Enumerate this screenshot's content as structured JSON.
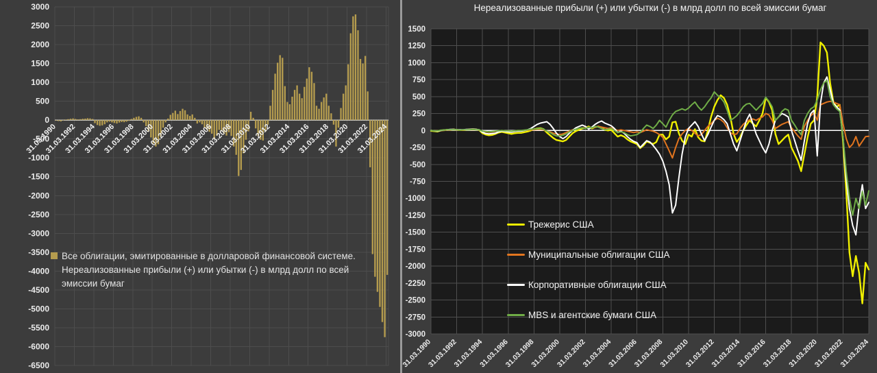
{
  "colors": {
    "panel_bg": "#3c3c3c",
    "left_grid": "#4d4d4d",
    "left_zero_axis": "#c9c9c9",
    "bar_fill": "#b59c4e",
    "right_plot_bg": "#1b1b1b",
    "right_grid": "#4f4f4f",
    "right_zero_line": "#ffffff",
    "divider": "#9a9a9a",
    "text": "#ececec"
  },
  "chart_data": [
    {
      "panel": "left",
      "type": "bar",
      "legend_label": "Все облигации, эмитированные в долларовой финансовой системе. Нереализованные прибыли (+) или убытки (-) в млрд долл по всей эмиссии бумаг",
      "bar_color": "#b59c4e",
      "frequency": "quarterly",
      "x_start": "31.03.1990",
      "x_end": "31.03.2024",
      "x_tick_labels": [
        "31.03.1990",
        "31.03.1992",
        "31.03.1994",
        "31.03.1996",
        "31.03.1998",
        "31.03.2000",
        "31.03.2002",
        "31.03.2004",
        "31.03.2006",
        "31.03.2008",
        "31.03.2010",
        "31.03.2012",
        "31.03.2014",
        "31.03.2016",
        "31.03.2018",
        "31.03.2020",
        "31.03.2022",
        "31.03.2024"
      ],
      "ylim": [
        -6500,
        3000
      ],
      "ytick_step": 500,
      "grid": true,
      "values": [
        -10,
        -25,
        -35,
        5,
        15,
        25,
        35,
        45,
        30,
        20,
        25,
        35,
        40,
        50,
        45,
        30,
        -80,
        -130,
        -150,
        -140,
        -110,
        -60,
        -40,
        -60,
        -75,
        -90,
        -65,
        -50,
        -55,
        -40,
        -20,
        30,
        60,
        85,
        100,
        60,
        -60,
        -160,
        -310,
        -460,
        -620,
        -700,
        -640,
        -440,
        -200,
        -60,
        40,
        140,
        190,
        250,
        160,
        240,
        300,
        260,
        150,
        110,
        150,
        60,
        -90,
        -60,
        -110,
        -200,
        -260,
        -310,
        -360,
        -500,
        -410,
        -260,
        -300,
        -360,
        -410,
        -320,
        -420,
        -700,
        -920,
        -1480,
        -1320,
        -880,
        -520,
        -300,
        220,
        60,
        -220,
        -420,
        -520,
        -540,
        -310,
        -120,
        380,
        800,
        1230,
        1520,
        1720,
        1650,
        900,
        480,
        420,
        620,
        800,
        920,
        700,
        580,
        880,
        1100,
        1400,
        1280,
        980,
        380,
        300,
        480,
        600,
        700,
        380,
        180,
        -120,
        -700,
        -200,
        320,
        700,
        920,
        1480,
        2300,
        2750,
        2800,
        2380,
        1620,
        1500,
        1700,
        760,
        -1250,
        -3550,
        -4150,
        -4550,
        -4950,
        -5350,
        -5750,
        -4100
      ]
    },
    {
      "panel": "right",
      "type": "line",
      "title": "Нереализованные прибыли (+) или убытки (-) в млрд долл по всей эмиссии бумаг",
      "frequency": "quarterly",
      "x_start": "31.03.1990",
      "x_end": "31.03.2024",
      "x_tick_labels": [
        "31.03.1990",
        "31.03.1992",
        "31.03.1994",
        "31.03.1996",
        "31.03.1998",
        "31.03.2000",
        "31.03.2002",
        "31.03.2004",
        "31.03.2006",
        "31.03.2008",
        "31.03.2010",
        "31.03.2012",
        "31.03.2014",
        "31.03.2016",
        "31.03.2018",
        "31.03.2020",
        "31.03.2022",
        "31.03.2024"
      ],
      "ylim": [
        -3000,
        1500
      ],
      "ytick_step": 250,
      "grid": true,
      "legend_position": "inside-left-bottom",
      "series": [
        {
          "name": "Трежерис США",
          "color": "#f0f000",
          "values": [
            -5,
            -10,
            -15,
            0,
            5,
            10,
            10,
            15,
            10,
            5,
            5,
            10,
            15,
            20,
            15,
            5,
            -40,
            -60,
            -70,
            -65,
            -50,
            -30,
            -20,
            -30,
            -40,
            -50,
            -40,
            -35,
            -35,
            -25,
            -15,
            0,
            20,
            30,
            35,
            20,
            -30,
            -70,
            -110,
            -140,
            -150,
            -160,
            -140,
            -90,
            -40,
            -10,
            10,
            30,
            40,
            60,
            30,
            50,
            60,
            40,
            10,
            0,
            10,
            -40,
            -90,
            -70,
            -90,
            -130,
            -160,
            -180,
            -200,
            -260,
            -220,
            -160,
            -180,
            -200,
            -170,
            -60,
            -60,
            -130,
            -90,
            120,
            130,
            -40,
            -150,
            -200,
            -60,
            -90,
            20,
            -100,
            -150,
            -160,
            0,
            200,
            350,
            450,
            520,
            480,
            380,
            200,
            -50,
            -170,
            -100,
            0,
            80,
            150,
            100,
            60,
            150,
            250,
            480,
            420,
            300,
            -50,
            -200,
            -150,
            -100,
            -60,
            -250,
            -350,
            -450,
            -600,
            -350,
            -100,
            100,
            150,
            500,
            1300,
            1250,
            1150,
            700,
            420,
            350,
            380,
            -150,
            -900,
            -1800,
            -2150,
            -1850,
            -2100,
            -2550,
            -1950,
            -2050
          ]
        },
        {
          "name": "Муниципальные облигации США",
          "color": "#e2751f",
          "values": [
            0,
            -5,
            -5,
            0,
            0,
            5,
            5,
            10,
            5,
            5,
            5,
            10,
            10,
            10,
            10,
            5,
            -10,
            -20,
            -25,
            -20,
            -15,
            -10,
            -5,
            -10,
            -10,
            -15,
            -10,
            -5,
            -5,
            0,
            5,
            10,
            10,
            15,
            15,
            10,
            -10,
            -20,
            -40,
            -50,
            -60,
            -50,
            -30,
            -10,
            10,
            20,
            30,
            40,
            40,
            50,
            40,
            50,
            60,
            50,
            40,
            30,
            40,
            20,
            0,
            10,
            0,
            -10,
            -20,
            -30,
            -20,
            -30,
            -10,
            10,
            0,
            -10,
            -30,
            -60,
            -100,
            -200,
            -300,
            -405,
            -250,
            -120,
            -50,
            0,
            30,
            0,
            -40,
            -80,
            -60,
            0,
            60,
            100,
            150,
            180,
            160,
            120,
            40,
            -30,
            -60,
            -50,
            30,
            90,
            130,
            160,
            170,
            150,
            180,
            200,
            250,
            230,
            150,
            30,
            60,
            90,
            110,
            130,
            40,
            -20,
            -80,
            -130,
            60,
            150,
            220,
            260,
            150,
            380,
            400,
            420,
            430,
            420,
            400,
            380,
            100,
            -120,
            -250,
            -200,
            -90,
            -230,
            -160,
            -90,
            -85
          ]
        },
        {
          "name": "Корпоративные облигации США",
          "color": "#ffffff",
          "values": [
            0,
            -5,
            -10,
            0,
            5,
            10,
            15,
            15,
            10,
            10,
            10,
            15,
            15,
            20,
            15,
            10,
            -25,
            -45,
            -50,
            -45,
            -40,
            -20,
            -10,
            -15,
            -20,
            -25,
            -15,
            -10,
            -10,
            0,
            10,
            30,
            60,
            90,
            110,
            120,
            130,
            90,
            30,
            -40,
            -90,
            -120,
            -90,
            -40,
            0,
            40,
            60,
            80,
            60,
            20,
            50,
            90,
            120,
            140,
            110,
            90,
            70,
            30,
            -30,
            -10,
            -40,
            -90,
            -130,
            -160,
            -180,
            -250,
            -200,
            -150,
            -170,
            -220,
            -280,
            -350,
            -450,
            -600,
            -800,
            -1216,
            -1100,
            -700,
            -350,
            -100,
            30,
            80,
            130,
            60,
            -50,
            -150,
            -60,
            50,
            150,
            220,
            200,
            160,
            100,
            -50,
            -200,
            -300,
            -150,
            0,
            150,
            240,
            100,
            -50,
            -150,
            -250,
            -330,
            -200,
            0,
            150,
            200,
            250,
            230,
            200,
            0,
            -150,
            -300,
            -440,
            -150,
            100,
            250,
            300,
            -375,
            400,
            700,
            790,
            600,
            400,
            350,
            300,
            -100,
            -700,
            -1150,
            -1400,
            -1540,
            -1100,
            -800,
            -1150,
            -1060
          ]
        },
        {
          "name": "MBS и агентские бумаги США",
          "color": "#70ad47",
          "values": [
            0,
            -5,
            -5,
            5,
            5,
            10,
            10,
            10,
            10,
            5,
            10,
            10,
            10,
            15,
            10,
            10,
            -10,
            -15,
            -20,
            -15,
            -10,
            -5,
            0,
            -5,
            -5,
            -10,
            -5,
            0,
            0,
            5,
            10,
            20,
            20,
            25,
            30,
            20,
            -10,
            -30,
            -60,
            -80,
            -80,
            -70,
            -50,
            -20,
            0,
            20,
            30,
            40,
            30,
            50,
            40,
            60,
            50,
            30,
            10,
            20,
            30,
            0,
            -30,
            -20,
            -30,
            -60,
            -80,
            -70,
            -60,
            -30,
            30,
            80,
            60,
            30,
            80,
            150,
            100,
            50,
            150,
            230,
            280,
            300,
            320,
            300,
            330,
            380,
            420,
            350,
            300,
            350,
            420,
            480,
            570,
            520,
            480,
            420,
            300,
            150,
            180,
            220,
            280,
            350,
            390,
            400,
            350,
            300,
            350,
            400,
            490,
            430,
            350,
            150,
            200,
            280,
            320,
            300,
            150,
            80,
            0,
            -60,
            150,
            250,
            320,
            350,
            450,
            600,
            700,
            740,
            500,
            380,
            320,
            280,
            -100,
            -600,
            -1000,
            -1250,
            -1000,
            -1150,
            -900,
            -1100,
            -890
          ]
        }
      ]
    }
  ]
}
